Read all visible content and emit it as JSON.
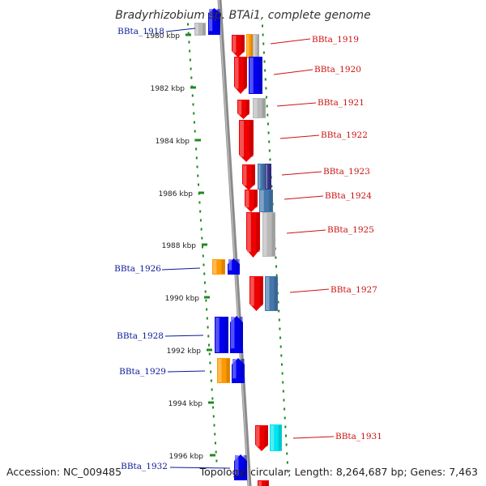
{
  "title": "Bradyrhizobium sp. BTAi1, complete genome",
  "footer": {
    "accession": "Accession: NC_009485",
    "summary": "Topology: circular; Length: 8,264,687 bp; Genes: 7,463"
  },
  "ticks": [
    "1980 kbp",
    "1982 kbp",
    "1984 kbp",
    "1986 kbp",
    "1988 kbp",
    "1990 kbp",
    "1992 kbp",
    "1994 kbp",
    "1996 kbp"
  ],
  "colors": {
    "red": "#ee0000",
    "blue": "#0000ee",
    "orange": "#ff9900",
    "gray": "#b8b8b8",
    "steelblue": "#4477aa",
    "navy": "#333388",
    "cyan": "#00e5ee",
    "leftLabel": "#0a1a9a",
    "rightLabel": "#cc1111",
    "rulerDots": "#228822",
    "backbone": "#8a8a8a"
  },
  "labels": {
    "left": [
      "BBta_1918",
      "BBta_1926",
      "BBta_1928",
      "BBta_1929",
      "BBta_1932"
    ],
    "right": [
      "BBta_1919",
      "BBta_1920",
      "BBta_1921",
      "BBta_1922",
      "BBta_1923",
      "BBta_1924",
      "BBta_1925",
      "BBta_1927",
      "BBta_1931"
    ]
  },
  "genes": [
    {
      "strand": "left",
      "color": "gray",
      "label": ""
    },
    {
      "strand": "left",
      "color": "blue",
      "label": "BBta_1918"
    },
    {
      "strand": "right",
      "color": "red",
      "label": "BBta_1919"
    },
    {
      "strand": "right",
      "color": "orange",
      "label": ""
    },
    {
      "strand": "right",
      "color": "gray",
      "label": ""
    },
    {
      "strand": "right",
      "color": "red",
      "label": ""
    },
    {
      "strand": "right",
      "color": "blue",
      "label": "BBta_1920"
    },
    {
      "strand": "right",
      "color": "red",
      "label": ""
    },
    {
      "strand": "right",
      "color": "gray",
      "label": "BBta_1921"
    },
    {
      "strand": "right",
      "color": "red",
      "label": "BBta_1922"
    },
    {
      "strand": "right",
      "color": "red",
      "label": ""
    },
    {
      "strand": "right",
      "color": "steelblue",
      "label": "BBta_1923"
    },
    {
      "strand": "right",
      "color": "navy",
      "label": ""
    },
    {
      "strand": "right",
      "color": "red",
      "label": ""
    },
    {
      "strand": "right",
      "color": "steelblue",
      "label": "BBta_1924"
    },
    {
      "strand": "right",
      "color": "red",
      "label": ""
    },
    {
      "strand": "right",
      "color": "gray",
      "label": "BBta_1925"
    },
    {
      "strand": "left",
      "color": "orange",
      "label": "BBta_1926"
    },
    {
      "strand": "left",
      "color": "blue",
      "label": ""
    },
    {
      "strand": "right",
      "color": "red",
      "label": ""
    },
    {
      "strand": "right",
      "color": "steelblue",
      "label": "BBta_1927"
    },
    {
      "strand": "left",
      "color": "blue",
      "label": "BBta_1928"
    },
    {
      "strand": "left",
      "color": "blue",
      "label": ""
    },
    {
      "strand": "left",
      "color": "orange",
      "label": "BBta_1929"
    },
    {
      "strand": "left",
      "color": "blue",
      "label": ""
    },
    {
      "strand": "right",
      "color": "red",
      "label": ""
    },
    {
      "strand": "right",
      "color": "cyan",
      "label": "BBta_1931"
    },
    {
      "strand": "left",
      "color": "blue",
      "label": "BBta_1932"
    },
    {
      "strand": "right",
      "color": "red",
      "label": ""
    }
  ]
}
